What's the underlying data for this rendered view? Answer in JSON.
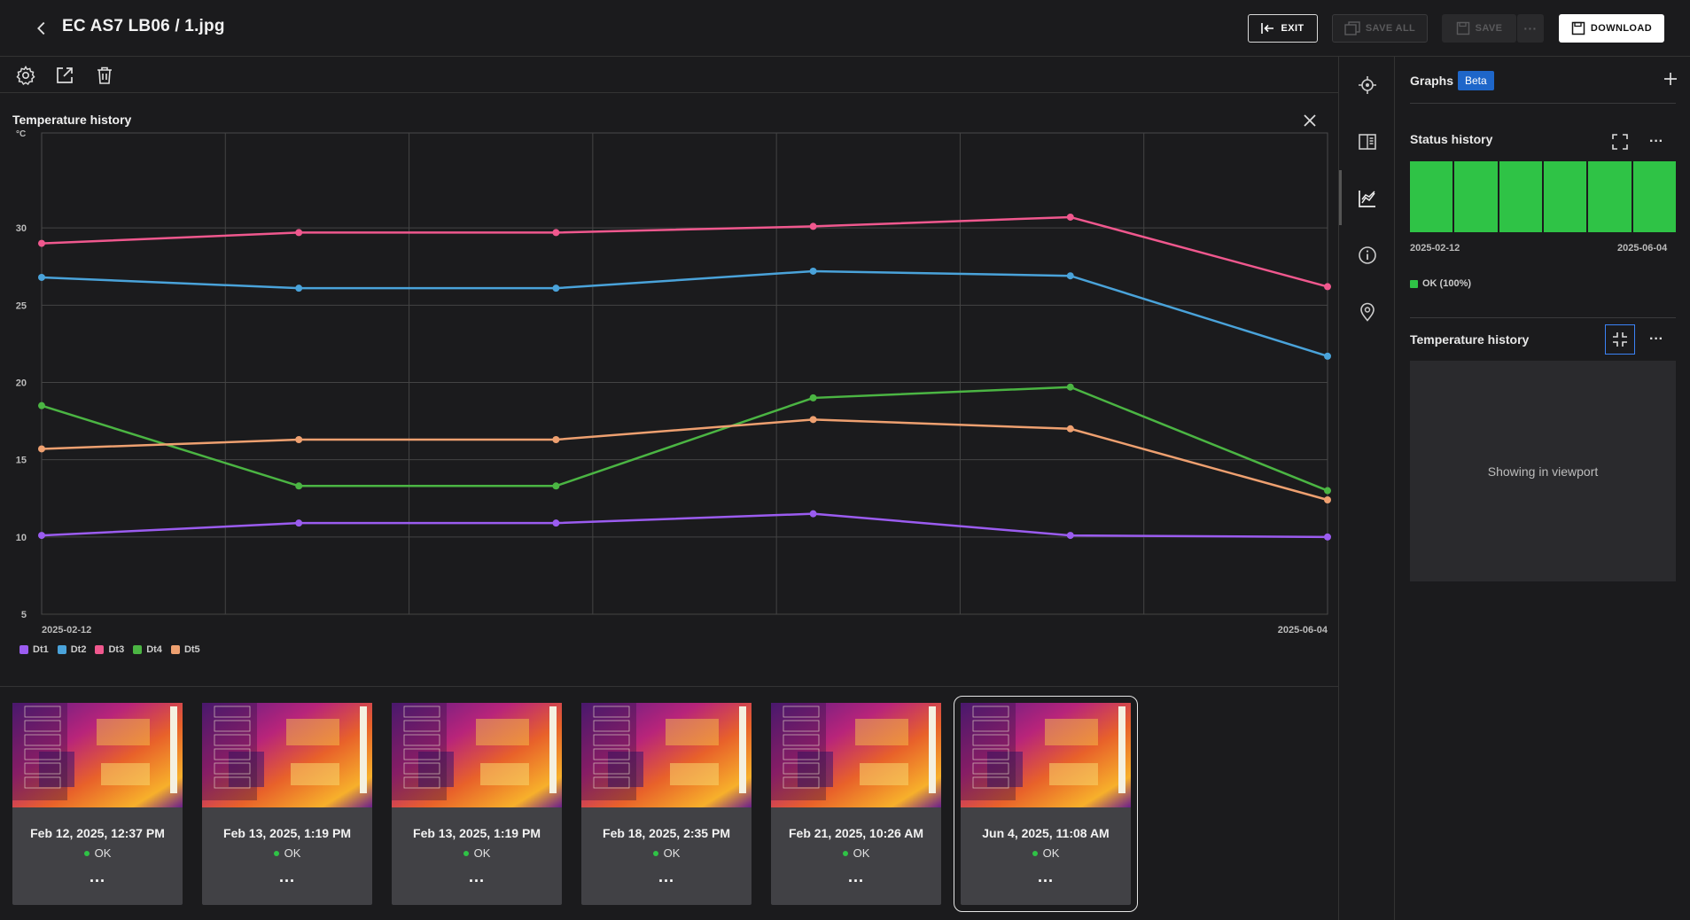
{
  "header": {
    "title": "EC AS7 LB06 / 1.jpg",
    "exit_label": "EXIT",
    "save_all_label": "SAVE ALL",
    "save_label": "SAVE",
    "more_label": "···",
    "download_label": "DOWNLOAD"
  },
  "toolbar": {
    "icons": [
      "settings-icon",
      "open-external-icon",
      "trash-icon"
    ]
  },
  "chart_panel": {
    "title": "Temperature history",
    "legend": [
      "Dt1",
      "Dt2",
      "Dt3",
      "Dt4",
      "Dt5"
    ]
  },
  "chart_data": {
    "type": "line",
    "title": "Temperature history",
    "ylabel": "°C",
    "xlabel": "",
    "ylim": [
      5,
      35
    ],
    "yticks": [
      5,
      10,
      15,
      20,
      25,
      30
    ],
    "x_tick_labels": [
      "2025-02-12",
      "2025-06-04"
    ],
    "x": [
      "2025-02-12 12:37",
      "2025-02-13 13:19",
      "2025-02-13 13:19",
      "2025-02-18 14:35",
      "2025-02-21 10:26",
      "2025-06-04 11:08"
    ],
    "x_positions": [
      0.0,
      0.2,
      0.4,
      0.6,
      0.8,
      1.0
    ],
    "series": [
      {
        "name": "Dt1",
        "color": "#9b5cf0",
        "values": [
          10.1,
          10.9,
          10.9,
          11.5,
          10.1,
          10.0
        ]
      },
      {
        "name": "Dt2",
        "color": "#4aa3da",
        "values": [
          26.8,
          26.1,
          26.1,
          27.2,
          26.9,
          21.7
        ]
      },
      {
        "name": "Dt3",
        "color": "#f0588e",
        "values": [
          29.0,
          29.7,
          29.7,
          30.1,
          30.7,
          26.2
        ]
      },
      {
        "name": "Dt4",
        "color": "#4bb543",
        "values": [
          18.5,
          13.3,
          13.3,
          19.0,
          19.7,
          13.0
        ]
      },
      {
        "name": "Dt5",
        "color": "#eea070",
        "values": [
          15.7,
          16.3,
          16.3,
          17.6,
          17.0,
          12.4
        ]
      }
    ],
    "grid": true,
    "legend_position": "bottom-left"
  },
  "right_panel": {
    "graphs_label": "Graphs",
    "beta_label": "Beta",
    "status_history_title": "Status history",
    "status_bar_count": 6,
    "status_start_date": "2025-02-12",
    "status_end_date": "2025-06-04",
    "status_legend": "OK (100%)",
    "ok_color": "#2fc346",
    "temperature_history_title": "Temperature history",
    "viewport_text": "Showing in viewport"
  },
  "rail": {
    "icons": [
      "crosshair-icon",
      "compare-icon",
      "chart-icon",
      "info-icon",
      "location-pin-icon"
    ]
  },
  "thumbnails": [
    {
      "date": "Feb 12, 2025, 12:37 PM",
      "status": "OK",
      "more": "...",
      "selected": false
    },
    {
      "date": "Feb 13, 2025, 1:19 PM",
      "status": "OK",
      "more": "...",
      "selected": false
    },
    {
      "date": "Feb 13, 2025, 1:19 PM",
      "status": "OK",
      "more": "...",
      "selected": false
    },
    {
      "date": "Feb 18, 2025, 2:35 PM",
      "status": "OK",
      "more": "...",
      "selected": false
    },
    {
      "date": "Feb 21, 2025, 10:26 AM",
      "status": "OK",
      "more": "...",
      "selected": false
    },
    {
      "date": "Jun 4, 2025, 11:08 AM",
      "status": "OK",
      "more": "...",
      "selected": true
    }
  ]
}
